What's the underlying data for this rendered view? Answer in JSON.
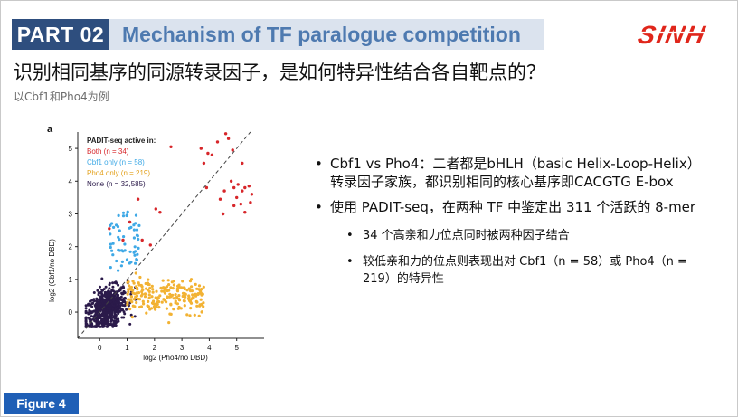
{
  "header": {
    "part_label": "PART 02",
    "title": "Mechanism of TF paralogue competition",
    "logo_text": "SINH"
  },
  "main_question": "识别相同基序的同源转录因子，是如何特异性结合各自靶点的？",
  "sub_question": "以Cbf1和Pho4为例",
  "figure_tag": "Figure 4",
  "bullets": [
    {
      "text": "Cbf1 vs Pho4：二者都是bHLH（basic Helix-Loop-Helix） 转录因子家族，都识别相同的核心基序即CACGTG E-box"
    },
    {
      "text": "使用 PADIT-seq，在两种 TF 中鉴定出 311 个活跃的 8-mer",
      "sub": [
        {
          "text": "34 个高亲和力位点同时被两种因子结合"
        },
        {
          "text": "较低亲和力的位点则表现出对 Cbf1（n = 58）或 Pho4（n = 219）的特异性"
        }
      ]
    }
  ],
  "colors": {
    "part_box": "#2e4e7e",
    "header_bar": "#dbe3ee",
    "header_text": "#4e7ab0",
    "logo": "#e0261b",
    "figure_tag": "#1f5fb6",
    "both": "#d7262a",
    "cbf1_only": "#3fa9e6",
    "pho4_only": "#f2b233",
    "none": "#2b1a4a"
  },
  "chart_data": {
    "type": "scatter",
    "panel_label": "a",
    "xlabel": "log2 (Pho4/no DBD)",
    "ylabel": "log2 (Cbf1/no DBD)",
    "xticks": [
      "0",
      "1",
      "2",
      "3",
      "4",
      "5"
    ],
    "yticks": [
      "0",
      "1",
      "2",
      "3",
      "4",
      "5"
    ],
    "xlim": [
      -0.8,
      6
    ],
    "ylim": [
      -0.8,
      5.5
    ],
    "legend_title": "PADIT-seq active in:",
    "legend_position": "top-left",
    "diagonal": true,
    "series": [
      {
        "name": "Both (n = 34)",
        "color": "#d7262a",
        "points": [
          [
            3.7,
            5.0
          ],
          [
            3.95,
            4.85
          ],
          [
            4.3,
            5.2
          ],
          [
            4.6,
            5.45
          ],
          [
            4.7,
            5.3
          ],
          [
            4.85,
            4.95
          ],
          [
            4.1,
            4.8
          ],
          [
            3.8,
            4.55
          ],
          [
            2.6,
            5.05
          ],
          [
            5.2,
            4.55
          ],
          [
            4.8,
            4.0
          ],
          [
            4.9,
            3.8
          ],
          [
            5.05,
            3.9
          ],
          [
            5.3,
            3.8
          ],
          [
            5.45,
            3.85
          ],
          [
            5.55,
            3.6
          ],
          [
            5.2,
            3.7
          ],
          [
            5.0,
            3.5
          ],
          [
            4.55,
            3.7
          ],
          [
            4.4,
            3.45
          ],
          [
            4.9,
            3.25
          ],
          [
            5.15,
            3.3
          ],
          [
            5.5,
            3.35
          ],
          [
            4.5,
            3.0
          ],
          [
            5.3,
            3.05
          ],
          [
            3.9,
            3.8
          ],
          [
            2.2,
            3.05
          ],
          [
            2.05,
            3.15
          ],
          [
            1.4,
            3.45
          ],
          [
            1.1,
            2.75
          ],
          [
            1.55,
            2.2
          ],
          [
            1.85,
            2.05
          ],
          [
            0.35,
            2.55
          ],
          [
            0.85,
            2.2
          ]
        ]
      },
      {
        "name": "Cbf1 only (n = 58)",
        "color": "#3fa9e6",
        "points": []
      },
      {
        "name": "Pho4 only (n = 219)",
        "color": "#f2b233",
        "points": []
      },
      {
        "name": "None (n = 32,585)",
        "color": "#2b1a4a",
        "points": []
      }
    ]
  }
}
